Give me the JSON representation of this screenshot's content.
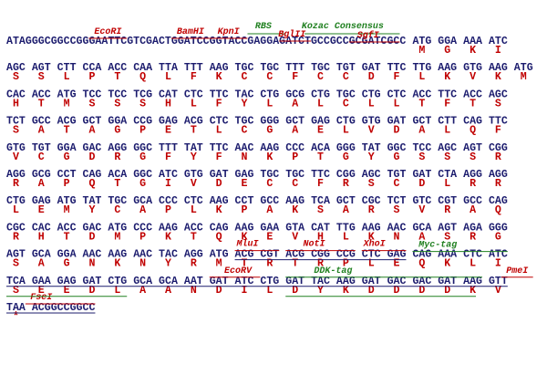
{
  "lines": [
    {
      "codons": [
        "ATAGGGCGGCCGGGAATTCGTCGACTGGATCCGGTACCGAGGAGATCTGCCGCCGCGATCGCC",
        "ATG",
        "GGA",
        "AAA",
        "ATC"
      ],
      "aa": [
        null,
        "M",
        "G",
        "K",
        "I"
      ],
      "features": [
        {
          "label": "EcoRI",
          "color": "#c00000"
        },
        {
          "label": "BamHI",
          "color": "#c00000"
        },
        {
          "label": "KpnI",
          "color": "#c00000"
        },
        {
          "label": "RBS",
          "color": "#208020"
        },
        {
          "label": "BglII",
          "color": "#c00000"
        },
        {
          "label": "Kozac Consensus",
          "color": "#208020"
        },
        {
          "label": "SgfI",
          "color": "#c00000"
        }
      ]
    },
    {
      "codons": [
        "AGC",
        "AGT",
        "CTT",
        "CCA",
        "ACC",
        "CAA",
        "TTA",
        "TTT",
        "AAG",
        "TGC",
        "TGC",
        "TTT",
        "TGC",
        "TGT",
        "GAT",
        "TTC",
        "TTG",
        "AAG",
        "GTG",
        "AAG",
        "ATG"
      ],
      "aa": [
        "S",
        "S",
        "L",
        "P",
        "T",
        "Q",
        "L",
        "F",
        "K",
        "C",
        "C",
        "F",
        "C",
        "C",
        "D",
        "F",
        "L",
        "K",
        "V",
        "K",
        "M"
      ],
      "features": []
    },
    {
      "codons": [
        "CAC",
        "ACC",
        "ATG",
        "TCC",
        "TCC",
        "TCG",
        "CAT",
        "CTC",
        "TTC",
        "TAC",
        "CTG",
        "GCG",
        "CTG",
        "TGC",
        "CTG",
        "CTC",
        "ACC",
        "TTC",
        "ACC",
        "AGC"
      ],
      "aa": [
        "H",
        "T",
        "M",
        "S",
        "S",
        "S",
        "H",
        "L",
        "F",
        "Y",
        "L",
        "A",
        "L",
        "C",
        "L",
        "L",
        "T",
        "F",
        "T",
        "S"
      ],
      "features": []
    },
    {
      "codons": [
        "TCT",
        "GCC",
        "ACG",
        "GCT",
        "GGA",
        "CCG",
        "GAG",
        "ACG",
        "CTC",
        "TGC",
        "GGG",
        "GCT",
        "GAG",
        "CTG",
        "GTG",
        "GAT",
        "GCT",
        "CTT",
        "CAG",
        "TTC"
      ],
      "aa": [
        "S",
        "A",
        "T",
        "A",
        "G",
        "P",
        "E",
        "T",
        "L",
        "C",
        "G",
        "A",
        "E",
        "L",
        "V",
        "D",
        "A",
        "L",
        "Q",
        "F"
      ],
      "features": []
    },
    {
      "codons": [
        "GTG",
        "TGT",
        "GGA",
        "GAC",
        "AGG",
        "GGC",
        "TTT",
        "TAT",
        "TTC",
        "AAC",
        "AAG",
        "CCC",
        "ACA",
        "GGG",
        "TAT",
        "GGC",
        "TCC",
        "AGC",
        "AGT",
        "CGG"
      ],
      "aa": [
        "V",
        "C",
        "G",
        "D",
        "R",
        "G",
        "F",
        "Y",
        "F",
        "N",
        "K",
        "P",
        "T",
        "G",
        "Y",
        "G",
        "S",
        "S",
        "S",
        "R"
      ],
      "features": []
    },
    {
      "codons": [
        "AGG",
        "GCG",
        "CCT",
        "CAG",
        "ACA",
        "GGC",
        "ATC",
        "GTG",
        "GAT",
        "GAG",
        "TGC",
        "TGC",
        "TTC",
        "CGG",
        "AGC",
        "TGT",
        "GAT",
        "CTA",
        "AGG",
        "AGG"
      ],
      "aa": [
        "R",
        "A",
        "P",
        "Q",
        "T",
        "G",
        "I",
        "V",
        "D",
        "E",
        "C",
        "C",
        "F",
        "R",
        "S",
        "C",
        "D",
        "L",
        "R",
        "R"
      ],
      "features": []
    },
    {
      "codons": [
        "CTG",
        "GAG",
        "ATG",
        "TAT",
        "TGC",
        "GCA",
        "CCC",
        "CTC",
        "AAG",
        "CCT",
        "GCC",
        "AAG",
        "TCA",
        "GCT",
        "CGC",
        "TCT",
        "GTC",
        "CGT",
        "GCC",
        "CAG"
      ],
      "aa": [
        "L",
        "E",
        "M",
        "Y",
        "C",
        "A",
        "P",
        "L",
        "K",
        "P",
        "A",
        "K",
        "S",
        "A",
        "R",
        "S",
        "V",
        "R",
        "A",
        "Q"
      ],
      "features": []
    },
    {
      "codons": [
        "CGC",
        "CAC",
        "ACC",
        "GAC",
        "ATG",
        "CCC",
        "AAG",
        "ACC",
        "CAG",
        "AAG",
        "GAA",
        "GTA",
        "CAT",
        "TTG",
        "AAG",
        "AAC",
        "GCA",
        "AGT",
        "AGA",
        "GGG"
      ],
      "aa": [
        "R",
        "H",
        "T",
        "D",
        "M",
        "P",
        "K",
        "T",
        "Q",
        "K",
        "E",
        "V",
        "H",
        "L",
        "K",
        "N",
        "A",
        "S",
        "R",
        "G"
      ],
      "features": []
    },
    {
      "codons": [
        "AGT",
        "GCA",
        "GGA",
        "AAC",
        "AAG",
        "AAC",
        "TAC",
        "AGG",
        "ATG",
        "ACG",
        "CGT",
        "ACG",
        "CGG",
        "CCG",
        "CTC",
        "GAG",
        "CAG",
        "AAA",
        "CTC",
        "ATC"
      ],
      "aa": [
        "S",
        "A",
        "G",
        "N",
        "K",
        "N",
        "Y",
        "R",
        "M",
        "T",
        "R",
        "T",
        "R",
        "P",
        "L",
        "E",
        "Q",
        "K",
        "L",
        "I"
      ],
      "features": [
        {
          "label": "MluI",
          "color": "#c00000"
        },
        {
          "label": "NotI",
          "color": "#c00000"
        },
        {
          "label": "XhoI",
          "color": "#c00000"
        },
        {
          "label": "Myc-tag",
          "color": "#208020"
        }
      ]
    },
    {
      "codons": [
        "TCA",
        "GAA",
        "GAG",
        "GAT",
        "CTG",
        "GCA",
        "GCA",
        "AAT",
        "GAT",
        "ATC",
        "CTG",
        "GAT",
        "TAC",
        "AAG",
        "GAT",
        "GAC",
        "GAC",
        "GAT",
        "AAG",
        "GTT"
      ],
      "aa": [
        "S",
        "E",
        "E",
        "D",
        "L",
        "A",
        "A",
        "N",
        "D",
        "I",
        "L",
        "D",
        "Y",
        "K",
        "D",
        "D",
        "D",
        "D",
        "K",
        "V"
      ],
      "features": [
        {
          "label": "EcoRV",
          "color": "#c00000"
        },
        {
          "label": "DDK-tag",
          "color": "#208020"
        },
        {
          "label": "PmeI",
          "color": "#c00000"
        }
      ]
    },
    {
      "codons": [
        "TAA",
        "ACGGCCGGCC"
      ],
      "aa": [
        "*",
        null
      ],
      "features": [
        {
          "label": "FseI",
          "color": "#c00000"
        }
      ]
    }
  ]
}
